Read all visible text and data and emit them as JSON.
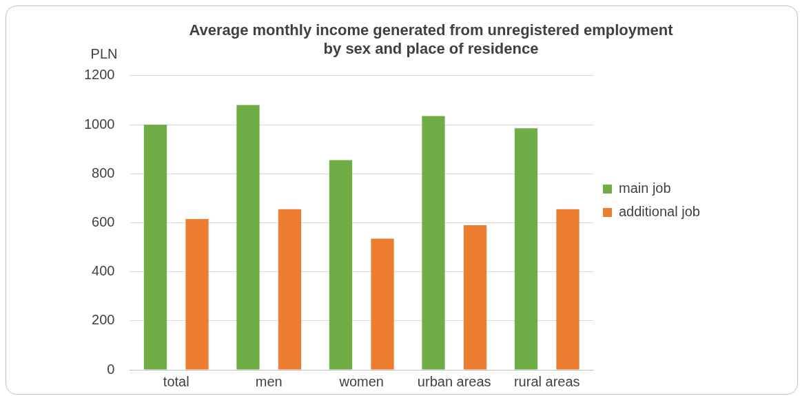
{
  "chart_data": {
    "type": "bar",
    "title": "Average monthly income generated from unregistered employment\nby sex and place of residence",
    "ylabel": "PLN",
    "categories": [
      "total",
      "men",
      "women",
      "urban areas",
      "rural areas"
    ],
    "series": [
      {
        "name": "main job",
        "color": "#70ad47",
        "values": [
          1000,
          1080,
          855,
          1035,
          985
        ]
      },
      {
        "name": "additional job",
        "color": "#ed7d31",
        "values": [
          615,
          655,
          535,
          590,
          655
        ]
      }
    ],
    "ylim": [
      0,
      1200
    ],
    "yticks": [
      0,
      200,
      400,
      600,
      800,
      1000,
      1200
    ],
    "grid": "y",
    "legend": "right"
  }
}
